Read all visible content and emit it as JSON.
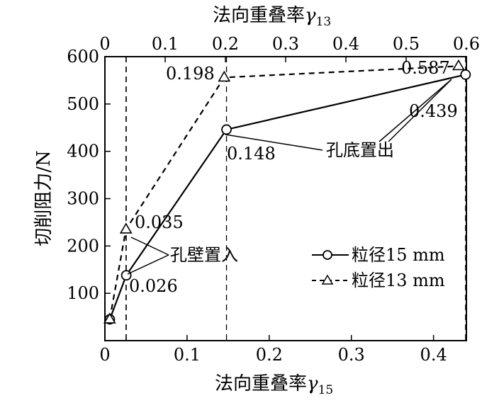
{
  "chart_data": {
    "type": "line",
    "xlabel_bottom": "法向重叠率",
    "xlabel_bottom_sub": "15",
    "xlabel_top": "法向重叠率",
    "xlabel_top_sub": "13",
    "ylabel": "切削阻力/N",
    "x_bottom_lim": [
      0,
      0.44
    ],
    "x_bottom_ticks": [
      "0",
      "0.1",
      "0.2",
      "0.3",
      "0.4"
    ],
    "x_top_lim": [
      0,
      0.6
    ],
    "x_top_ticks": [
      "0",
      "0.1",
      "0.2",
      "0.3",
      "0.4",
      "0.5",
      "0.6"
    ],
    "ylim": [
      0,
      600
    ],
    "y_ticks": [
      "100",
      "200",
      "300",
      "400",
      "500",
      "600"
    ],
    "series": [
      {
        "name": "粒径15 mm",
        "axis": "bottom",
        "marker": "circle",
        "line": "solid",
        "x": [
          0.006,
          0.026,
          0.148,
          0.439
        ],
        "y": [
          45,
          138,
          446,
          562
        ]
      },
      {
        "name": "粒径13 mm",
        "axis": "top",
        "marker": "triangle",
        "line": "dashed",
        "x": [
          0.008,
          0.035,
          0.198,
          0.587
        ],
        "y": [
          45,
          235,
          556,
          580
        ]
      }
    ],
    "vlines_bottom_x": [
      0.026,
      0.148,
      0.439
    ],
    "vlines_top_x": [
      0.035,
      0.198,
      0.587
    ],
    "point_labels": [
      "0.026",
      "0.148",
      "0.439",
      "0.035",
      "0.198",
      "0.587"
    ],
    "annotations": {
      "wall_entry": "孔壁置入",
      "bottom_exit": "孔底置出"
    }
  }
}
